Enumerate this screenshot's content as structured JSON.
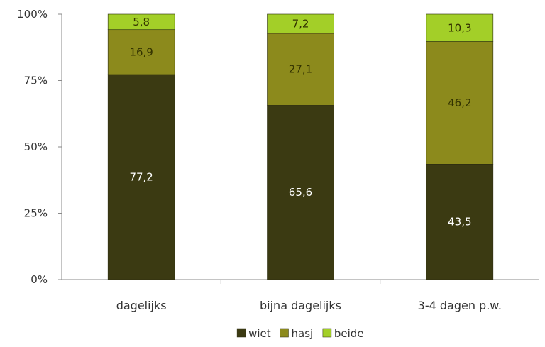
{
  "chart_data": {
    "type": "bar",
    "stacked": true,
    "normalized": true,
    "categories": [
      "dagelijks",
      "bijna dagelijks",
      "3-4 dagen p.w."
    ],
    "series": [
      {
        "name": "wiet",
        "values": [
          77.2,
          65.6,
          43.5
        ],
        "labels": [
          "77,2",
          "65,6",
          "43,5"
        ],
        "color": "#3b3a12",
        "label_color": "#ffffff"
      },
      {
        "name": "hasj",
        "values": [
          16.9,
          27.1,
          46.2
        ],
        "labels": [
          "16,9",
          "27,1",
          "46,2"
        ],
        "color": "#8c8a1c",
        "label_color": "#333300"
      },
      {
        "name": "beide",
        "values": [
          5.8,
          7.2,
          10.3
        ],
        "labels": [
          "5,8",
          "7,2",
          "10,3"
        ],
        "color": "#a3cf28",
        "label_color": "#333300"
      }
    ],
    "yticks": [
      "0%",
      "25%",
      "50%",
      "75%",
      "100%"
    ],
    "ylim": [
      0,
      100
    ],
    "title": "",
    "xlabel": "",
    "ylabel": "",
    "grid": false,
    "legend_position": "bottom"
  }
}
